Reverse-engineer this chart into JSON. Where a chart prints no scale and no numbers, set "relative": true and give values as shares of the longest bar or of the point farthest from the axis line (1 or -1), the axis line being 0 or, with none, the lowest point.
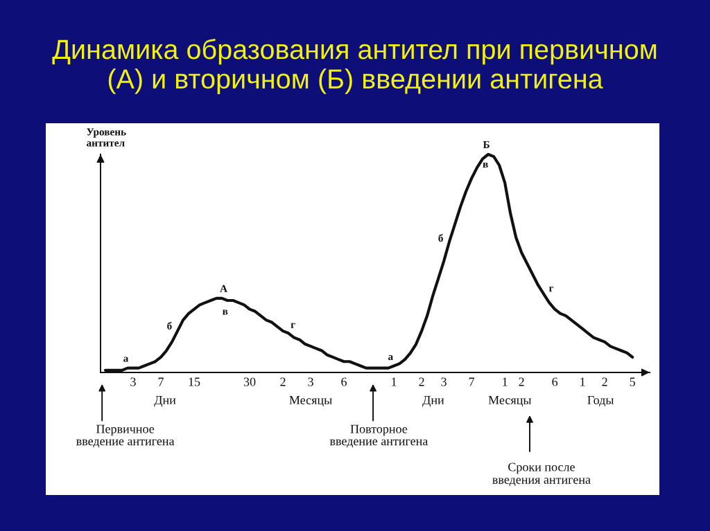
{
  "chart_data": {
    "type": "line",
    "title": "Динамика образования антител при первичном\n(А) и вторичном (Б) введении антигена",
    "ylabel": "Уровень\nантител",
    "relative": true,
    "categories": [
      null,
      null,
      null,
      null,
      null,
      "3",
      null,
      null,
      null,
      null,
      "7",
      null,
      null,
      null,
      null,
      null,
      "15",
      null,
      null,
      null,
      null,
      null,
      null,
      null,
      null,
      null,
      "30",
      null,
      null,
      null,
      null,
      null,
      "2",
      null,
      null,
      null,
      null,
      "3",
      null,
      null,
      null,
      null,
      null,
      "6",
      null,
      null,
      null,
      null,
      null,
      null,
      null,
      null,
      "1",
      null,
      null,
      null,
      null,
      "2",
      null,
      null,
      null,
      "3",
      null,
      null,
      null,
      null,
      "7",
      null,
      null,
      null,
      null,
      null,
      "1",
      null,
      null,
      "2",
      null,
      null,
      null,
      null,
      null,
      "6",
      null,
      null,
      null,
      null,
      "1",
      null,
      null,
      null,
      "2",
      null,
      null,
      null,
      null,
      "5"
    ],
    "series": [
      {
        "color": "#111111",
        "values": [
          0.01,
          0.01,
          0.01,
          0.01,
          0.02,
          0.02,
          0.02,
          0.03,
          0.04,
          0.05,
          0.07,
          0.1,
          0.14,
          0.19,
          0.24,
          0.27,
          0.29,
          0.31,
          0.32,
          0.33,
          0.34,
          0.34,
          0.33,
          0.33,
          0.32,
          0.31,
          0.29,
          0.28,
          0.26,
          0.24,
          0.23,
          0.21,
          0.19,
          0.18,
          0.16,
          0.15,
          0.13,
          0.12,
          0.11,
          0.1,
          0.08,
          0.07,
          0.06,
          0.05,
          0.05,
          0.04,
          0.03,
          0.02,
          0.02,
          0.02,
          0.02,
          0.02,
          0.03,
          0.04,
          0.06,
          0.09,
          0.13,
          0.19,
          0.26,
          0.35,
          0.43,
          0.51,
          0.6,
          0.68,
          0.76,
          0.83,
          0.89,
          0.94,
          0.98,
          1.0,
          0.99,
          0.95,
          0.87,
          0.73,
          0.62,
          0.55,
          0.5,
          0.45,
          0.4,
          0.36,
          0.32,
          0.29,
          0.27,
          0.26,
          0.24,
          0.22,
          0.2,
          0.18,
          0.16,
          0.15,
          0.14,
          0.12,
          0.11,
          0.1,
          0.09,
          0.07
        ]
      }
    ],
    "tick_labels": "x",
    "marker": "none",
    "line_style": "solid",
    "annotations": [
      "Дни",
      "Месяцы",
      "Дни",
      "Месяцы",
      "Годы",
      "Первичное\nвведение антигена",
      "Повторное\nвведение антигена",
      "Сроки после\nвведения антигена",
      "а",
      "б",
      "А",
      "в",
      "г",
      "а",
      "б",
      "Б",
      "в",
      "г"
    ]
  }
}
